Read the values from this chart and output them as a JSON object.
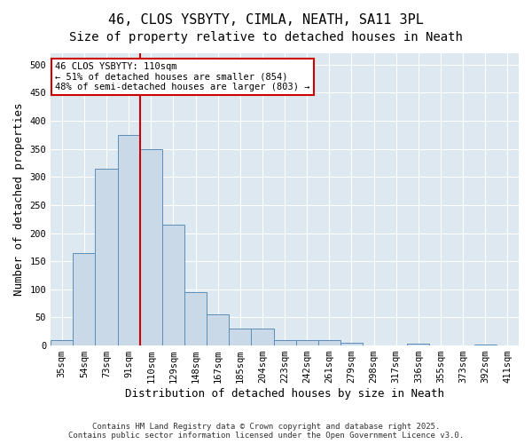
{
  "title_line1": "46, CLOS YSBYTY, CIMLA, NEATH, SA11 3PL",
  "title_line2": "Size of property relative to detached houses in Neath",
  "xlabel": "Distribution of detached houses by size in Neath",
  "ylabel": "Number of detached properties",
  "bins": [
    "35sqm",
    "54sqm",
    "73sqm",
    "91sqm",
    "110sqm",
    "129sqm",
    "148sqm",
    "167sqm",
    "185sqm",
    "204sqm",
    "223sqm",
    "242sqm",
    "261sqm",
    "279sqm",
    "298sqm",
    "317sqm",
    "336sqm",
    "355sqm",
    "373sqm",
    "392sqm",
    "411sqm"
  ],
  "bar_values": [
    10,
    165,
    315,
    375,
    350,
    215,
    95,
    55,
    30,
    30,
    10,
    10,
    10,
    5,
    0,
    0,
    3,
    0,
    0,
    2,
    0
  ],
  "bar_color": "#c9d9e8",
  "bar_edge_color": "#5b8db8",
  "vline_x_index": 4,
  "vline_color": "#cc0000",
  "annotation_line1": "46 CLOS YSBYTY: 110sqm",
  "annotation_line2": "← 51% of detached houses are smaller (854)",
  "annotation_line3": "48% of semi-detached houses are larger (803) →",
  "annotation_box_color": "#ffffff",
  "annotation_border_color": "#cc0000",
  "ylim": [
    0,
    520
  ],
  "yticks": [
    0,
    50,
    100,
    150,
    200,
    250,
    300,
    350,
    400,
    450,
    500
  ],
  "background_color": "#dde8f0",
  "footer_line1": "Contains HM Land Registry data © Crown copyright and database right 2025.",
  "footer_line2": "Contains public sector information licensed under the Open Government Licence v3.0.",
  "title_fontsize": 11,
  "subtitle_fontsize": 10,
  "tick_fontsize": 7.5,
  "label_fontsize": 9,
  "footer_fontsize": 6.5
}
